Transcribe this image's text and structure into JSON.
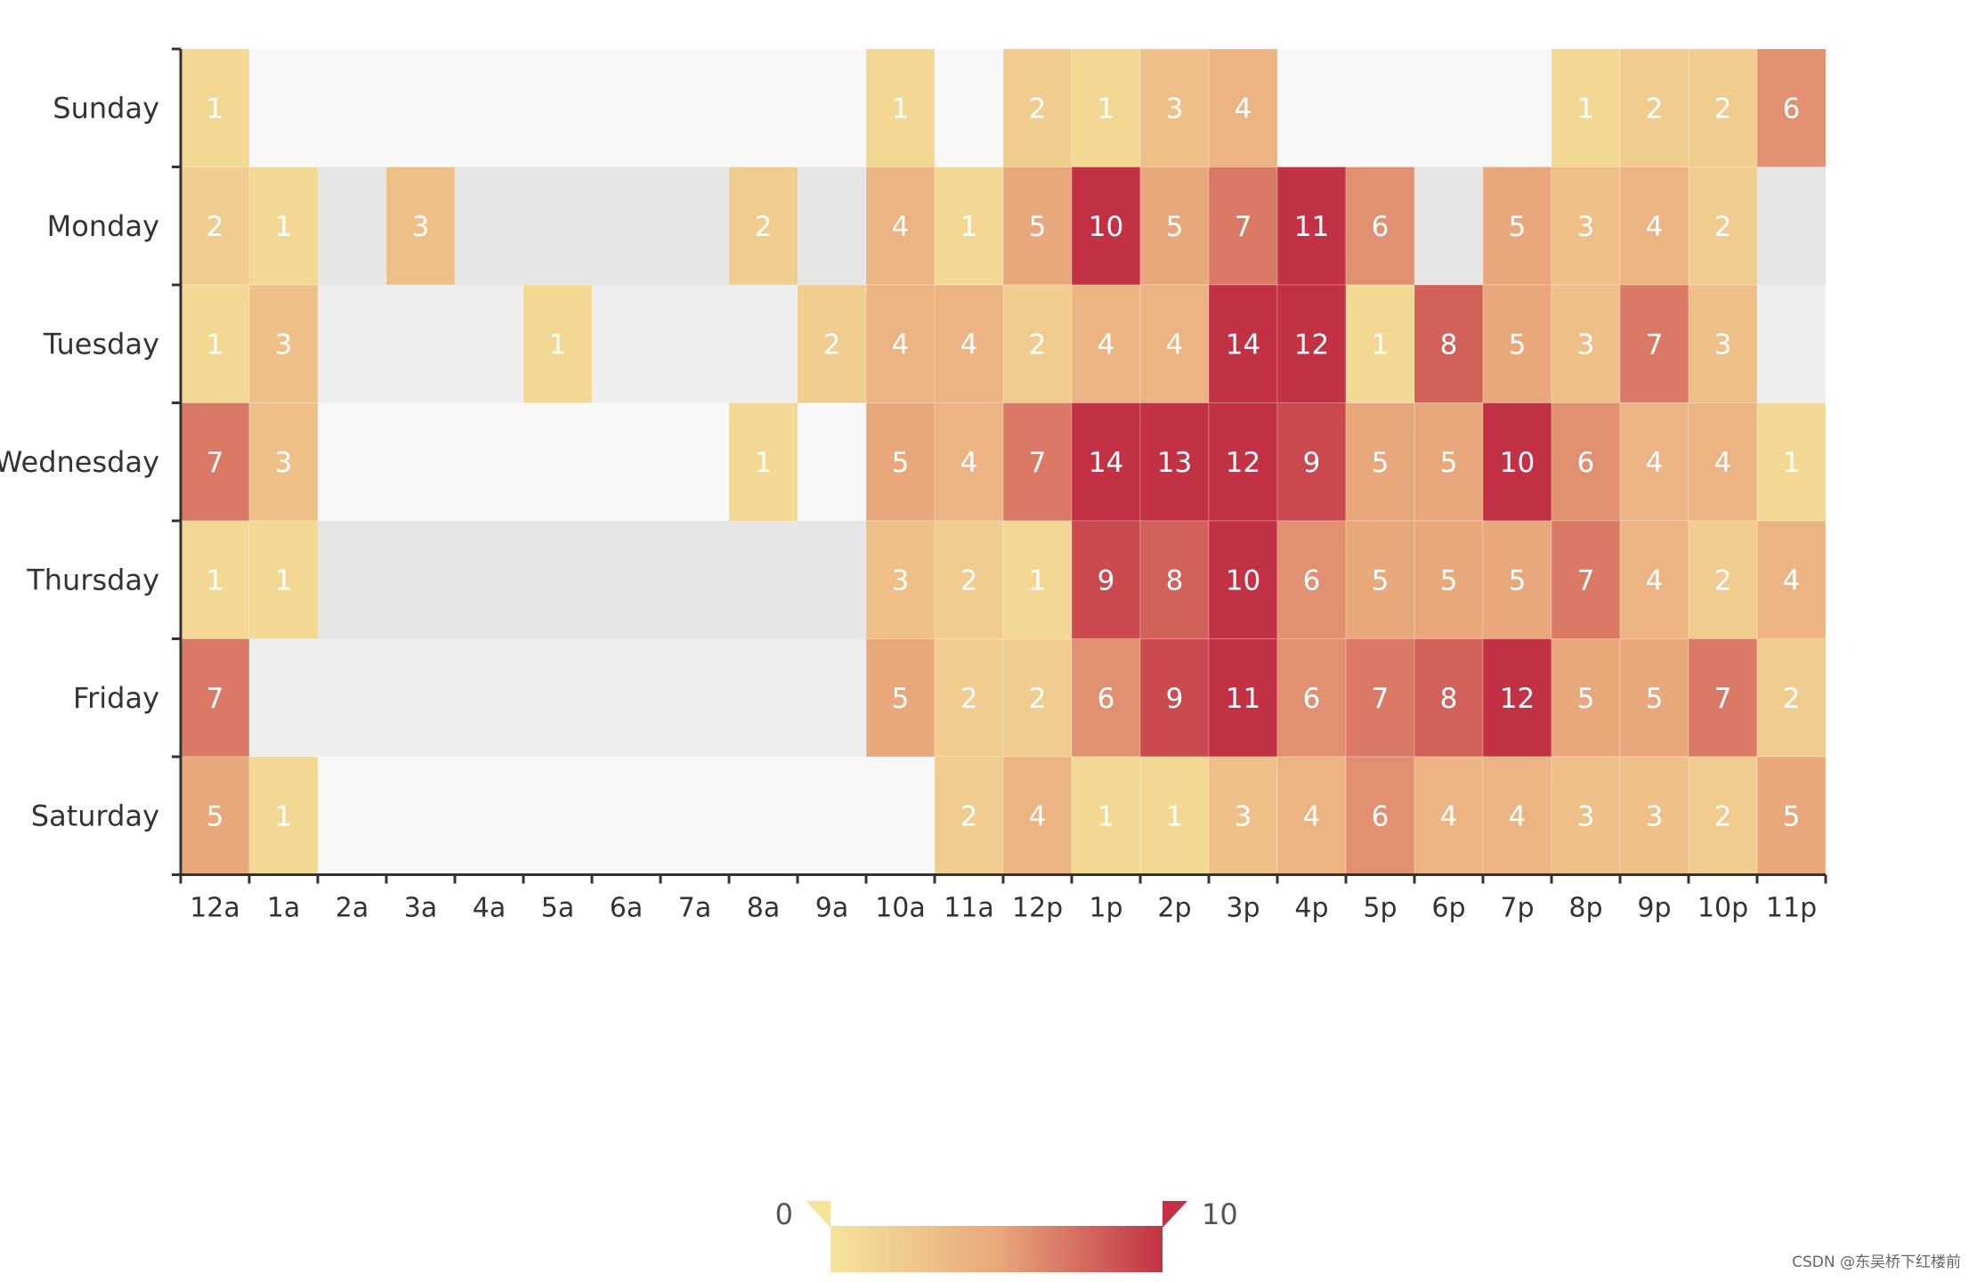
{
  "chart_data": {
    "type": "heatmap",
    "title": "",
    "xlabel": "",
    "ylabel": "",
    "x_categories": [
      "12a",
      "1a",
      "2a",
      "3a",
      "4a",
      "5a",
      "6a",
      "7a",
      "8a",
      "9a",
      "10a",
      "11a",
      "12p",
      "1p",
      "2p",
      "3p",
      "4p",
      "5p",
      "6p",
      "7p",
      "8p",
      "9p",
      "10p",
      "11p"
    ],
    "y_categories": [
      "Sunday",
      "Monday",
      "Tuesday",
      "Wednesday",
      "Thursday",
      "Friday",
      "Saturday"
    ],
    "values": [
      [
        1,
        null,
        null,
        null,
        null,
        null,
        null,
        null,
        null,
        null,
        1,
        null,
        2,
        1,
        3,
        4,
        null,
        null,
        null,
        null,
        1,
        2,
        2,
        6
      ],
      [
        2,
        1,
        null,
        3,
        null,
        null,
        null,
        null,
        2,
        null,
        4,
        1,
        5,
        10,
        5,
        7,
        11,
        6,
        null,
        5,
        3,
        4,
        2,
        null
      ],
      [
        1,
        3,
        null,
        null,
        null,
        1,
        null,
        null,
        null,
        2,
        4,
        4,
        2,
        4,
        4,
        14,
        12,
        1,
        8,
        5,
        3,
        7,
        3,
        null
      ],
      [
        7,
        3,
        null,
        null,
        null,
        null,
        null,
        null,
        1,
        null,
        5,
        4,
        7,
        14,
        13,
        12,
        9,
        5,
        5,
        10,
        6,
        4,
        4,
        1
      ],
      [
        1,
        1,
        null,
        null,
        null,
        null,
        null,
        null,
        null,
        null,
        3,
        2,
        1,
        9,
        8,
        10,
        6,
        5,
        5,
        5,
        7,
        4,
        2,
        4
      ],
      [
        7,
        null,
        null,
        null,
        null,
        null,
        null,
        null,
        null,
        null,
        5,
        2,
        2,
        6,
        9,
        11,
        6,
        7,
        8,
        12,
        5,
        5,
        7,
        2
      ],
      [
        5,
        1,
        null,
        null,
        null,
        null,
        null,
        null,
        null,
        null,
        null,
        2,
        4,
        1,
        1,
        3,
        4,
        6,
        4,
        4,
        3,
        3,
        2,
        5
      ]
    ],
    "visual_map": {
      "min": 0,
      "max": 10,
      "min_label": "0",
      "max_label": "10",
      "low_color": "#f5e49a",
      "mid_color": "#e9a87c",
      "high_color": "#c23244"
    },
    "empty_cell_colors": [
      "#f8f8f8",
      "#eeeeee",
      "#e6e6e6"
    ],
    "label_color": "#ffffff",
    "axis_color": "#333333",
    "tick_label_color": "#333333"
  },
  "watermark": "CSDN @东吴桥下红楼前"
}
